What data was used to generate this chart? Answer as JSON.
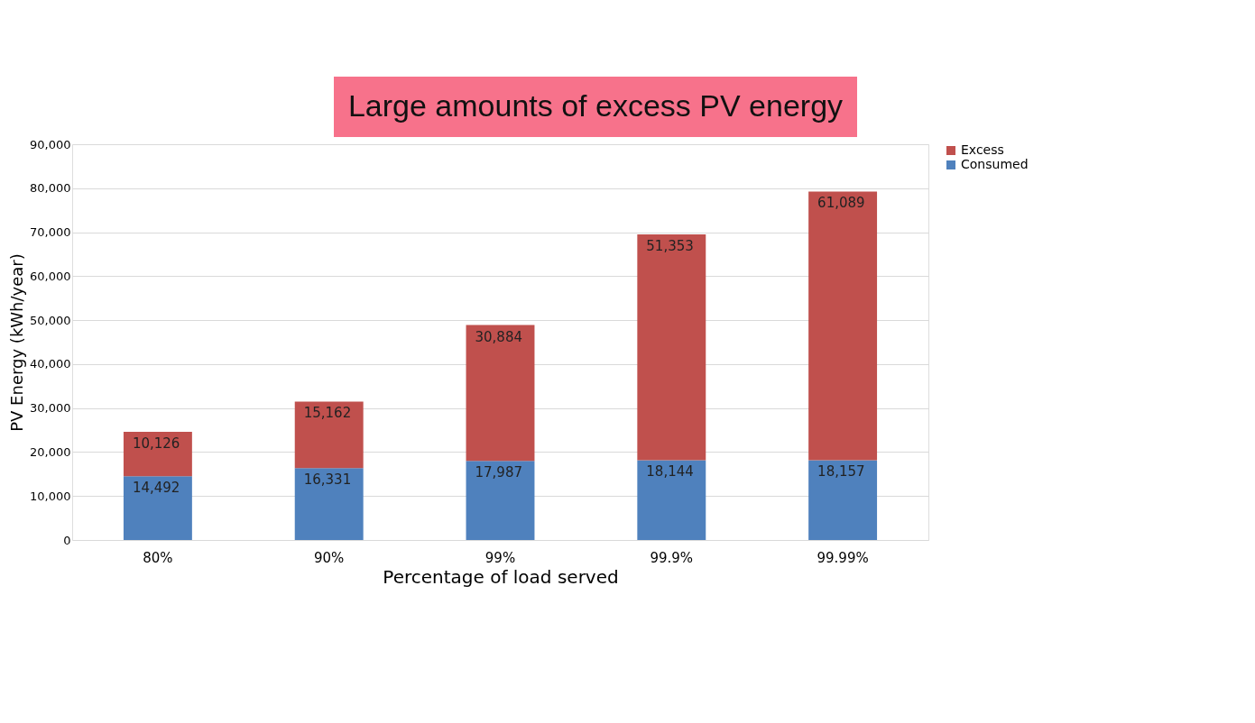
{
  "chart_data": {
    "type": "bar",
    "title": "Large amounts of excess PV energy",
    "xlabel": "Percentage of load served",
    "ylabel": "PV Energy (kWh/year)",
    "categories": [
      "80%",
      "90%",
      "99%",
      "99.9%",
      "99.99%"
    ],
    "stacked": true,
    "series": [
      {
        "name": "Consumed",
        "color": "#4f81bd",
        "values": [
          14492,
          16331,
          17987,
          18144,
          18157
        ],
        "value_labels": [
          "14,492",
          "16,331",
          "17,987",
          "18,144",
          "18,157"
        ]
      },
      {
        "name": "Excess",
        "color": "#c0504d",
        "values": [
          10126,
          15162,
          30884,
          51353,
          61089
        ],
        "value_labels": [
          "10,126",
          "15,162",
          "30,884",
          "51,353",
          "61,089"
        ]
      }
    ],
    "ylim": [
      0,
      90000
    ],
    "yticks": [
      0,
      {
        "value": 10000,
        "label": "10,000"
      },
      {
        "value": 20000,
        "label": "20,000"
      },
      {
        "value": 30000,
        "label": "30,000"
      },
      {
        "value": 40000,
        "label": "40,000"
      },
      {
        "value": 50000,
        "label": "50,000"
      },
      {
        "value": 60000,
        "label": "60,000"
      },
      {
        "value": 70000,
        "label": "70,000"
      },
      {
        "value": 80000,
        "label": "80,000"
      },
      {
        "value": 90000,
        "label": "90,000"
      }
    ],
    "grid": "y",
    "legend": "right"
  }
}
